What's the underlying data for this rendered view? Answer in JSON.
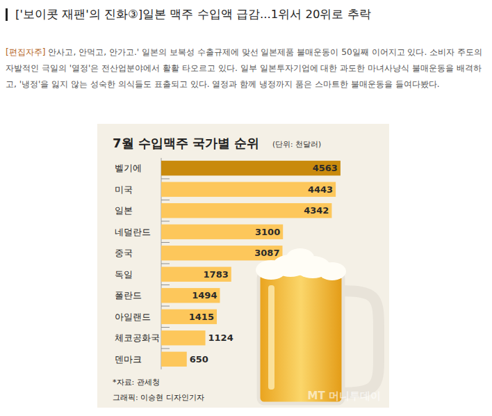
{
  "article": {
    "title": "['보이콧 재팬'의 진화③]일본 맥주 수입액 급감...1위서 20위로 추락",
    "editor_tag": "[편집자주]",
    "editor_note": "안사고, 안먹고, 안가고.' 일본의 보복성 수출규제에 맞선 일본제품 불매운동이 50일째 이어지고 있다. 소비자 주도의 자발적인 극일의 '열정'은 전산업분야에서 활활 타오르고 있다. 일부 일본투자기업에 대한 과도한 마녀사냥식 불매운동을 배격하고, '냉정'을 잃지 않는 성숙한 의식들도 표출되고 있다. 열정과 함께 냉정까지 품은 스마트한 불매운동을 들여다봤다."
  },
  "chart_data": {
    "type": "bar",
    "orientation": "horizontal",
    "title": "7월 수입맥주 국가별 순위",
    "subtitle": "(단위: 천달러)",
    "categories": [
      "벨기에",
      "미국",
      "일본",
      "네덜란드",
      "중국",
      "독일",
      "폴란드",
      "아일랜드",
      "체코공화국",
      "덴마크"
    ],
    "values": [
      4563,
      4443,
      4342,
      3100,
      3087,
      1783,
      1494,
      1415,
      1124,
      650
    ],
    "colors": [
      "#c98a0d",
      "#fdc75b",
      "#fdc75b",
      "#fdc75b",
      "#fdc75b",
      "#fdc75b",
      "#fdc75b",
      "#fdc75b",
      "#fdc75b",
      "#fdc75b"
    ],
    "xlim": [
      0,
      4600
    ],
    "data_labels": true,
    "tick_labels": "y",
    "grid": false,
    "source": "*자료: 관세청",
    "credit": "그래픽: 이승현 디자인기자",
    "watermark": "MT 머니투데이"
  }
}
